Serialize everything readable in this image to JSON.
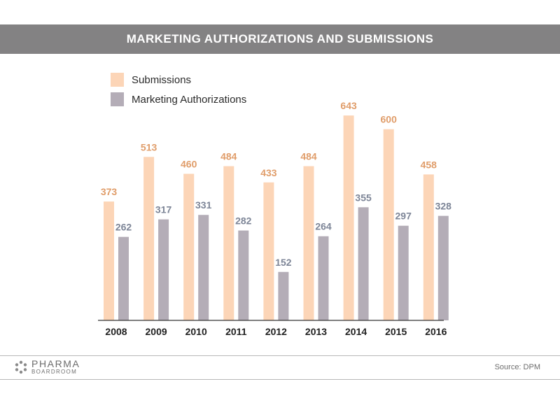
{
  "header": {
    "title": "MARKETING AUTHORIZATIONS AND SUBMISSIONS"
  },
  "footer": {
    "logo_main": "PHARMA",
    "logo_sub": "BOARDROOM",
    "source": "Source: DPM"
  },
  "colors": {
    "submissions": "#fcd5b7",
    "authorizations": "#b4adb7",
    "submissions_label": "#e09d6a",
    "authorizations_label": "#7d8597",
    "header_bg": "#838283"
  },
  "chart_data": {
    "type": "bar",
    "categories": [
      "2008",
      "2009",
      "2010",
      "2011",
      "2012",
      "2013",
      "2014",
      "2015",
      "2016"
    ],
    "series": [
      {
        "name": "Submissions",
        "values": [
          373,
          513,
          460,
          484,
          433,
          484,
          643,
          600,
          458
        ]
      },
      {
        "name": "Marketing Authorizations",
        "values": [
          262,
          317,
          331,
          282,
          152,
          264,
          355,
          297,
          328
        ]
      }
    ],
    "title": "MARKETING AUTHORIZATIONS AND SUBMISSIONS",
    "ylim": [
      0,
      700
    ],
    "grid": false,
    "legend": "top-left"
  }
}
